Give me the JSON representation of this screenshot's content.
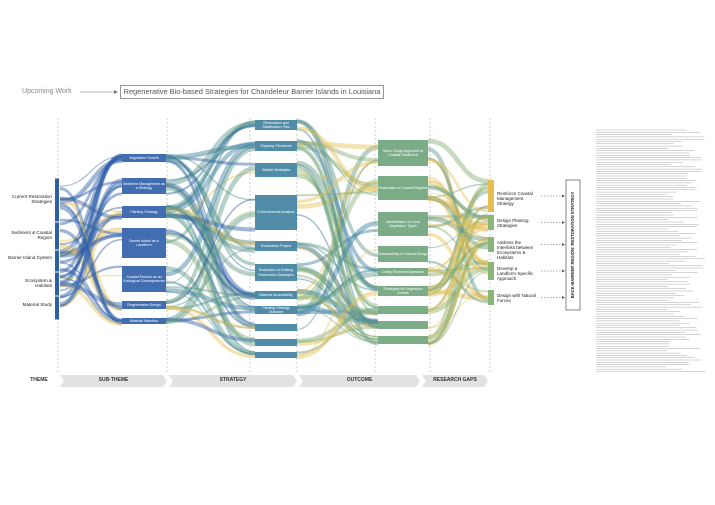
{
  "header": {
    "label": "Upcoming Work",
    "title": "Regenerative Bio-based Strategies for Chandeleur Barrier Islands in Louisiana"
  },
  "themes": [
    "Current Restoration Strategies",
    "Sediment & Coastal Region",
    "Barrier Island System",
    "Ecosystem & Habitats",
    "Material Study"
  ],
  "sub_themes": [
    "Vegetation Growth",
    "Sediment Management as a Strategy",
    "Planting Strategy",
    "Barrier Island as a Landform",
    "Coastal Erosion as an Ecological Consequences",
    "Regenerative Design",
    "Material Selection"
  ],
  "strategies": [
    "Restoration and Stabilization Plan",
    "Shipping Structures",
    "Habitat Strategies",
    "Environmental Analysis",
    "Restoration Project",
    "Evaluation of Existing Restoration Strategies",
    "Material Accessibility",
    "Planting Strategy Outcome"
  ],
  "outcomes": [
    "Storm Surge Approach to Coastal Resilience",
    "Restoration of Coastal Regions",
    "Identification of Local Vegetation Types",
    "Sustainability in Natural Design",
    "Living Shoreline Approach",
    "Strategies for Vegetation Growth"
  ],
  "research_gaps": [
    "Reinforce Coastal Management Strategy",
    "Design Planting Strategies",
    "Address the Interlinks between Ecosystems & Habitats",
    "Develop a Landform-Specific Approach",
    "Design with Natural Forces"
  ],
  "side_label": "BACK-BARRIER REGION: RESTORATION STRATEGY",
  "stages": [
    "THEME",
    "SUB-THEME",
    "STRATEGY",
    "OUTCOME",
    "RESEARCH GAPS"
  ]
}
